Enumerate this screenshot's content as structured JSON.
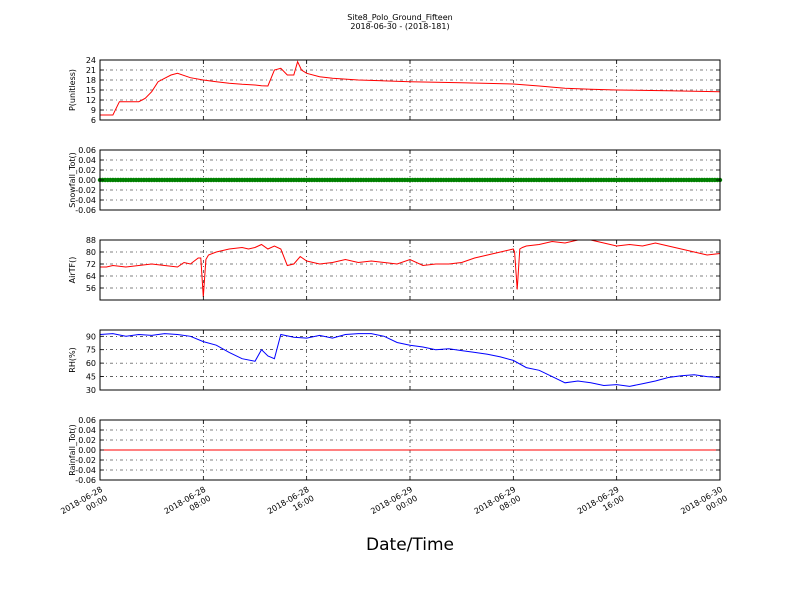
{
  "figure": {
    "title": "Site8_Polo_Ground_Fifteen",
    "subtitle": "2018-06-30 - (2018-181)",
    "xlabel": "Date/Time",
    "x_tick_labels": [
      [
        "2018-06-28",
        "00:00"
      ],
      [
        "2018-06-28",
        "08:00"
      ],
      [
        "2018-06-28",
        "16:00"
      ],
      [
        "2018-06-29",
        "00:00"
      ],
      [
        "2018-06-29",
        "08:00"
      ],
      [
        "2018-06-29",
        "16:00"
      ],
      [
        "2018-06-30",
        "00:00"
      ]
    ],
    "x_range_hours": [
      0,
      48
    ]
  },
  "chart_data": [
    {
      "type": "line",
      "ylabel": "P(unitless)",
      "ylim": [
        6,
        24
      ],
      "yticks": [
        6,
        9,
        12,
        15,
        18,
        21,
        24
      ],
      "grid": true,
      "color": "#ff0000",
      "x_unit": "hours since 2018-06-28 00:00",
      "series": [
        {
          "x": [
            0,
            0.5,
            1.0,
            1.5,
            2.0,
            2.5,
            3.0,
            3.5,
            4.0,
            4.5,
            5.0,
            5.5,
            6.0,
            7.0,
            8.0,
            9.0,
            10.0,
            11.0,
            12.0,
            12.5,
            13.0,
            13.5,
            14.0,
            14.5,
            15.0,
            15.3,
            15.6,
            16.0,
            17.0,
            18.0,
            20.0,
            24.0,
            28.0,
            32.0,
            34.0,
            36.0,
            38.0,
            40.0,
            44.0,
            48.0
          ],
          "y": [
            7.5,
            7.5,
            7.5,
            11.5,
            11.5,
            11.5,
            11.5,
            12.5,
            14.5,
            17.5,
            18.5,
            19.5,
            20,
            18.7,
            18.0,
            17.5,
            17.0,
            16.7,
            16.5,
            16.3,
            16.2,
            21.0,
            21.5,
            19.5,
            19.5,
            23.5,
            21.0,
            20.0,
            19.0,
            18.5,
            18.0,
            17.5,
            17.2,
            16.8,
            16.2,
            15.5,
            15.2,
            15.0,
            14.8,
            14.5
          ]
        }
      ]
    },
    {
      "type": "scatter",
      "ylabel": "Snowfall_Tot()",
      "ylim": [
        -0.06,
        0.06
      ],
      "yticks": [
        -0.06,
        -0.04,
        -0.02,
        0.0,
        0.02,
        0.04,
        0.06
      ],
      "grid": true,
      "color": "#008000",
      "x_unit": "hours since 2018-06-28 00:00",
      "series": [
        {
          "x": [
            0,
            48
          ],
          "y": [
            0,
            0
          ],
          "marker": "dense"
        }
      ]
    },
    {
      "type": "line",
      "ylabel": "AirTF()",
      "ylim": [
        48,
        88
      ],
      "yticks": [
        56,
        64,
        72,
        80,
        88
      ],
      "grid": true,
      "color": "#ff0000",
      "x_unit": "hours since 2018-06-28 00:00",
      "series": [
        {
          "x": [
            0,
            0.5,
            1,
            2,
            3,
            4,
            5,
            6,
            6.5,
            7,
            7.6,
            7.8,
            8.0,
            8.2,
            8.4,
            9,
            10,
            11,
            11.5,
            12,
            12.5,
            13,
            13.5,
            14,
            14.5,
            15,
            15.5,
            16,
            17,
            18,
            19,
            20,
            21,
            22,
            23,
            24,
            25,
            26,
            27,
            28,
            29,
            30,
            31,
            32,
            32.1,
            32.3,
            32.5,
            32.7,
            33,
            34,
            35,
            36,
            37,
            38,
            39,
            40,
            41,
            42,
            43,
            44,
            45,
            46,
            47,
            48
          ],
          "y": [
            70,
            70,
            71,
            70,
            71,
            72,
            71,
            70,
            73,
            72,
            76,
            76,
            50,
            75,
            78,
            80,
            82,
            83,
            82,
            83,
            85,
            82,
            84,
            82,
            71,
            72,
            77,
            74,
            72,
            73,
            75,
            73,
            74,
            73,
            72,
            75,
            71,
            72,
            72,
            73,
            76,
            78,
            80,
            82,
            80,
            55,
            82,
            83,
            84,
            85,
            87,
            86,
            88,
            88,
            86,
            84,
            85,
            84,
            86,
            84,
            82,
            80,
            78,
            79
          ]
        }
      ]
    },
    {
      "type": "line",
      "ylabel": "RH(%)",
      "ylim": [
        30,
        97
      ],
      "yticks": [
        30,
        45,
        60,
        75,
        90
      ],
      "grid": true,
      "color": "#0000ff",
      "x_unit": "hours since 2018-06-28 00:00",
      "series": [
        {
          "x": [
            0,
            1,
            2,
            3,
            4,
            5,
            6,
            7,
            8,
            9,
            10,
            11,
            12,
            12.5,
            13,
            13.5,
            14,
            15,
            16,
            17,
            18,
            19,
            20,
            21,
            22,
            23,
            24,
            25,
            26,
            27,
            28,
            29,
            30,
            31,
            32,
            33,
            34,
            35,
            36,
            37,
            38,
            39,
            40,
            41,
            42,
            43,
            44,
            45,
            46,
            47,
            48
          ],
          "y": [
            92,
            93,
            90,
            92,
            91,
            93,
            92,
            90,
            84,
            80,
            72,
            65,
            62,
            75,
            68,
            65,
            92,
            89,
            88,
            91,
            88,
            92,
            93,
            93,
            90,
            83,
            80,
            78,
            75,
            76,
            74,
            72,
            70,
            67,
            63,
            55,
            52,
            45,
            38,
            40,
            38,
            35,
            36,
            34,
            37,
            40,
            44,
            46,
            47,
            45,
            44
          ]
        }
      ]
    },
    {
      "type": "line",
      "ylabel": "Rainfall_Tot()",
      "ylim": [
        -0.06,
        0.06
      ],
      "yticks": [
        -0.06,
        -0.04,
        -0.02,
        0.0,
        0.02,
        0.04,
        0.06
      ],
      "grid": true,
      "color": "#ff0000",
      "x_unit": "hours since 2018-06-28 00:00",
      "series": [
        {
          "x": [
            0,
            48
          ],
          "y": [
            0,
            0
          ]
        }
      ]
    }
  ]
}
